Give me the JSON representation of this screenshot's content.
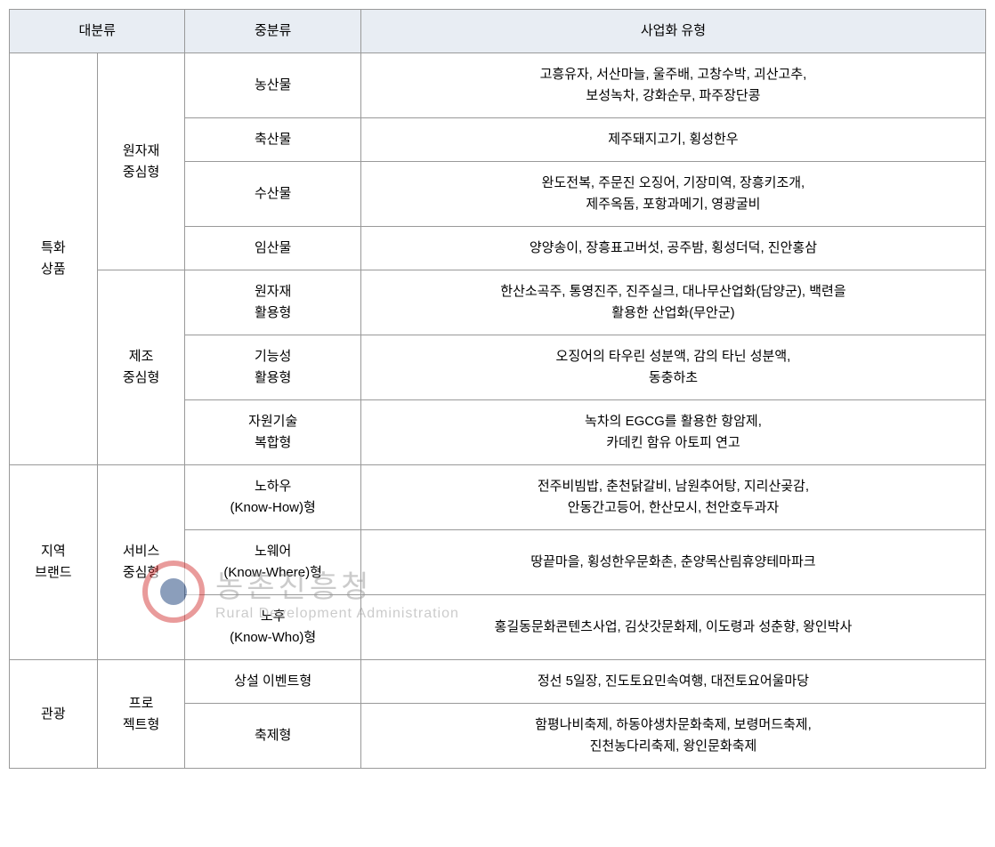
{
  "header": {
    "col1": "대분류",
    "col2": "중분류",
    "col3": "사업화 유형"
  },
  "rows": {
    "specialty_products": {
      "label": "특화\n상품",
      "raw_material": {
        "label": "원자재\n중심형",
        "agricultural": {
          "label": "농산물",
          "content": "고흥유자, 서산마늘, 울주배, 고창수박, 괴산고추,\n보성녹차, 강화순무, 파주장단콩"
        },
        "livestock": {
          "label": "축산물",
          "content": "제주돼지고기, 횡성한우"
        },
        "marine": {
          "label": "수산물",
          "content": "완도전복, 주문진 오징어, 기장미역, 장흥키조개,\n제주옥돔, 포항과메기, 영광굴비"
        },
        "forest": {
          "label": "임산물",
          "content": "양양송이, 장흥표고버섯, 공주밤, 횡성더덕, 진안홍삼"
        }
      },
      "manufacturing": {
        "label": "제조\n중심형",
        "raw_util": {
          "label": "원자재\n활용형",
          "content": "한산소곡주, 통영진주, 진주실크, 대나무산업화(담양군), 백련을\n활용한 산업화(무안군)"
        },
        "functional": {
          "label": "기능성\n활용형",
          "content": "오징어의 타우린 성분액, 감의 타닌 성분액,\n동충하초"
        },
        "resource_tech": {
          "label": "자원기술\n복합형",
          "content": "녹차의 EGCG를 활용한 항암제,\n카데킨 함유 아토피 연고"
        }
      }
    },
    "regional_brand": {
      "label": "지역\n브랜드",
      "service": {
        "label": "서비스\n중심형",
        "knowhow": {
          "label": "노하우\n(Know-How)형",
          "content": "전주비빔밥, 춘천닭갈비, 남원추어탕, 지리산곶감,\n안동간고등어, 한산모시, 천안호두과자"
        },
        "knowwhere": {
          "label": "노웨어\n(Know-Where)형",
          "content": "땅끝마을, 횡성한우문화촌, 춘양목산림휴양테마파크"
        },
        "knowwho": {
          "label": "노후\n(Know-Who)형",
          "content": "홍길동문화콘텐츠사업, 김삿갓문화제, 이도령과 성춘향, 왕인박사"
        }
      }
    },
    "tourism": {
      "label": "관광",
      "project": {
        "label": "프로\n젝트형",
        "permanent": {
          "label": "상설 이벤트형",
          "content": "정선 5일장, 진도토요민속여행, 대전토요어울마당"
        },
        "festival": {
          "label": "축제형",
          "content": "함평나비축제, 하동야생차문화축제, 보령머드축제,\n진천농다리축제, 왕인문화축제"
        }
      }
    }
  },
  "watermark": {
    "kr": "농촌진흥청",
    "en": "Rural Development Administration"
  },
  "colors": {
    "header_bg": "#e8edf3",
    "border": "#999999",
    "text": "#000000",
    "watermark": "#999999",
    "logo_red": "#d43939",
    "logo_blue": "#1a3f7a"
  }
}
